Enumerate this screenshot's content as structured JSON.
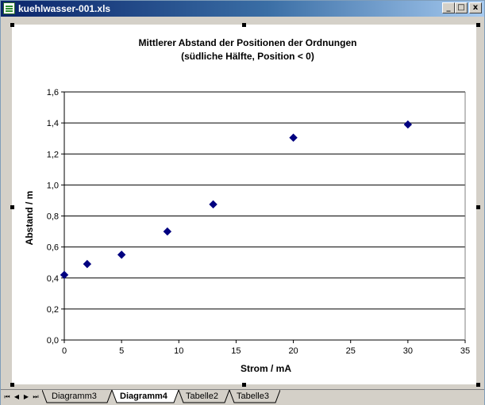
{
  "window": {
    "title": "kuehlwasser-001.xls",
    "buttons": {
      "minimize": "_",
      "restore": "□",
      "close": "x"
    }
  },
  "chart_data": {
    "type": "scatter",
    "title": "Mittlerer Abstand der Positionen der Ordnungen",
    "subtitle": "(südliche Hälfte, Position < 0)",
    "xlabel": "Strom / mA",
    "ylabel": "Abstand / m",
    "xlim": [
      0,
      35
    ],
    "ylim": [
      0,
      1.6
    ],
    "x_ticks": [
      "0",
      "5",
      "10",
      "15",
      "20",
      "25",
      "30",
      "35"
    ],
    "y_ticks": [
      "0,0",
      "0,2",
      "0,4",
      "0,6",
      "0,8",
      "1,0",
      "1,2",
      "1,4",
      "1,6"
    ],
    "grid": "horizontal",
    "marker": "diamond",
    "marker_color": "#000080",
    "points": [
      {
        "x": 0,
        "y": 0.42
      },
      {
        "x": 2,
        "y": 0.49
      },
      {
        "x": 5,
        "y": 0.55
      },
      {
        "x": 9,
        "y": 0.7
      },
      {
        "x": 13,
        "y": 0.875
      },
      {
        "x": 20,
        "y": 1.305
      },
      {
        "x": 30,
        "y": 1.39
      }
    ]
  },
  "sheet_tabs": {
    "nav": [
      "⏮",
      "◀",
      "▶",
      "⏭"
    ],
    "tabs": [
      {
        "label": "Diagramm3",
        "active": false
      },
      {
        "label": "Diagramm4",
        "active": true
      },
      {
        "label": "Tabelle2",
        "active": false
      },
      {
        "label": "Tabelle3",
        "active": false
      }
    ]
  }
}
